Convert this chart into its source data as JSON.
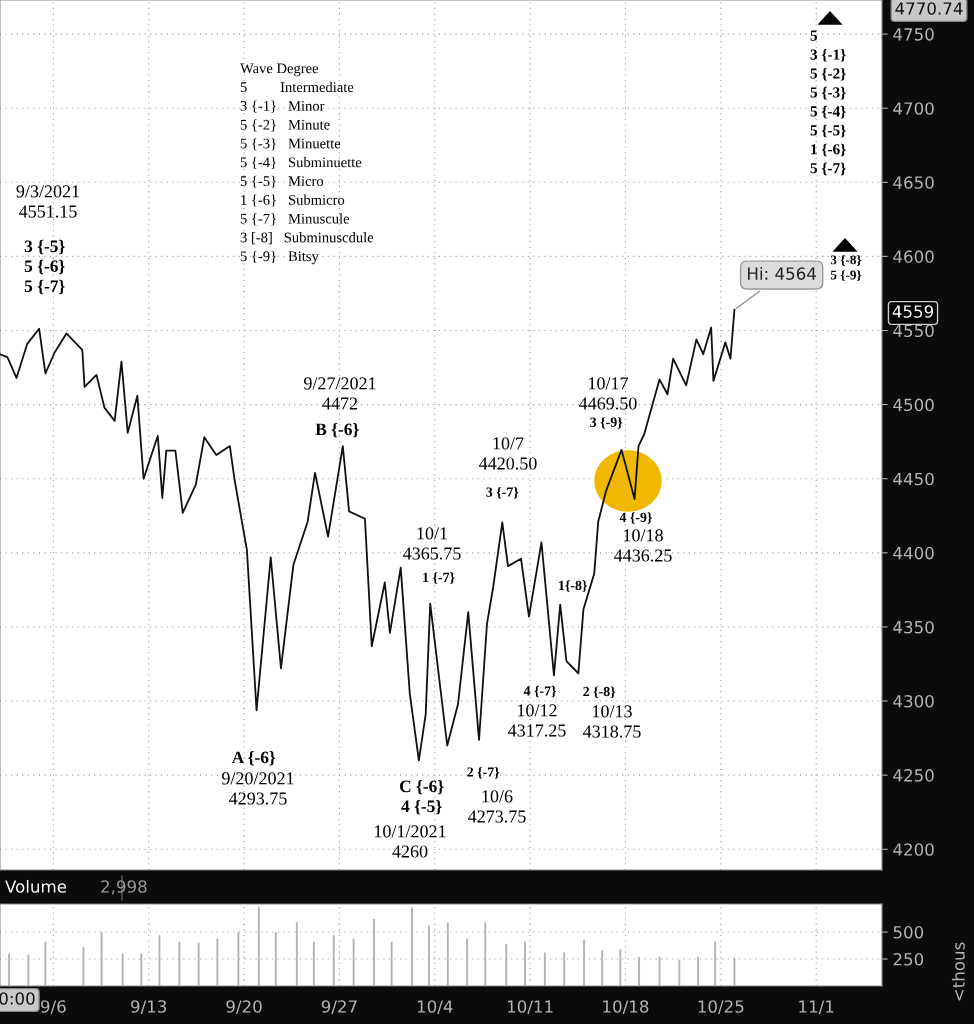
{
  "chart_data": [
    {
      "type": "line",
      "x": [
        "2021-09-02T02:00",
        "2021-09-02T15:00",
        "2021-09-03T07:00",
        "2021-09-04T02:00",
        "2021-09-04T23:00",
        "2021-09-05T10:00",
        "2021-09-06T02:00",
        "2021-09-06T23:00",
        "2021-09-08T03:00",
        "2021-09-08T07:00",
        "2021-09-09T04:00",
        "2021-09-09T18:00",
        "2021-09-10T12:00",
        "2021-09-11T00:00",
        "2021-09-11T11:00",
        "2021-09-12T04:00",
        "2021-09-12T15:00",
        "2021-09-13T16:00",
        "2021-09-14T00:00",
        "2021-09-14T07:00",
        "2021-09-14T23:00",
        "2021-09-15T12:00",
        "2021-09-16T11:00",
        "2021-09-17T02:00",
        "2021-09-17T23:00",
        "2021-09-18T23:00",
        "2021-09-19T07:00",
        "2021-09-20T05:00",
        "2021-09-20T22:00",
        "2021-09-21T23:00",
        "2021-09-22T17:00",
        "2021-09-23T15:00",
        "2021-09-24T16:00",
        "2021-09-25T05:00",
        "2021-09-26T04:00",
        "2021-09-27T06:00",
        "2021-09-27T17:00",
        "2021-09-28T21:00",
        "2021-09-29T09:00",
        "2021-09-30T08:00",
        "2021-09-30T17:00",
        "2021-10-01T12:00",
        "2021-10-02T04:00",
        "2021-10-02T20:00",
        "2021-10-03T08:00",
        "2021-10-03T16:00",
        "2021-10-04T22:00",
        "2021-10-05T17:00",
        "2021-10-06T11:00",
        "2021-10-07T06:00",
        "2021-10-07T20:00",
        "2021-10-08T07:00",
        "2021-10-08T23:00",
        "2021-10-09T09:00",
        "2021-10-10T08:00",
        "2021-10-10T22:00",
        "2021-10-11T20:00",
        "2021-10-12T18:00",
        "2021-10-13T05:00",
        "2021-10-13T16:00",
        "2021-10-14T13:00",
        "2021-10-14T22:00",
        "2021-10-15T17:00",
        "2021-10-16T00:00",
        "2021-10-16T14:00",
        "2021-10-17T17:00",
        "2021-10-18T16:00",
        "2021-10-18T23:00",
        "2021-10-19T09:00",
        "2021-10-20T12:00",
        "2021-10-21T02:00",
        "2021-10-21T12:00",
        "2021-10-22T11:00",
        "2021-10-23T05:00",
        "2021-10-23T17:00",
        "2021-10-24T07:00",
        "2021-10-24T11:00",
        "2021-10-25T08:00",
        "2021-10-25T17:00",
        "2021-10-26T00:00"
      ],
      "series": [
        {
          "color": "#111111",
          "values": [
            4534,
            4532,
            4518,
            4541,
            4551.15,
            4521,
            4535,
            4548,
            4537,
            4512,
            4520,
            4498,
            4489,
            4529,
            4481,
            4506,
            4450,
            4479,
            4437,
            4469,
            4469,
            4427,
            4446,
            4478,
            4466,
            4472,
            4450,
            4402,
            4293.75,
            4397,
            4322,
            4392,
            4421,
            4454,
            4411,
            4472,
            4428,
            4423,
            4337,
            4380,
            4346,
            4390,
            4305,
            4260,
            4291,
            4365.75,
            4270,
            4298,
            4360,
            4273.75,
            4352,
            4377,
            4420.5,
            4391,
            4396,
            4357,
            4407,
            4317.25,
            4365,
            4327,
            4318.75,
            4362,
            4386,
            4421,
            4442,
            4469.5,
            4436.25,
            4472,
            4480,
            4517,
            4507,
            4531,
            4513,
            4544,
            4534,
            4552,
            4516,
            4542,
            4531,
            4564
          ]
        }
      ],
      "xlim": [
        "2021-09-02T02:00",
        "2021-11-05T20:00"
      ],
      "xticks": [
        {
          "value": "2021-09-06",
          "label": null
        },
        {
          "value": "2021-09-13",
          "label": null
        },
        {
          "value": "2021-09-20",
          "label": null
        },
        {
          "value": "2021-09-27",
          "label": null
        },
        {
          "value": "2021-10-04",
          "label": null
        },
        {
          "value": "2021-10-11",
          "label": null
        },
        {
          "value": "2021-10-18",
          "label": null
        },
        {
          "value": "2021-10-25",
          "label": null
        },
        {
          "value": "2021-11-01",
          "label": null
        }
      ],
      "ylim": [
        4186,
        4773
      ],
      "yticks": [
        4200,
        4250,
        4300,
        4350,
        4400,
        4450,
        4500,
        4550,
        4600,
        4650,
        4700,
        4750
      ],
      "tick_labels": "y",
      "grid": true,
      "marker": "none",
      "line_style": "solid",
      "annotations": [
        "9/3/2021\n4551.15",
        {
          "text": "3 {-5}\n5 {-6}\n5 {-7}",
          "x": "2021-09-04T23:00",
          "y": 4551.15
        },
        {
          "text": "A {-6}",
          "x": "2021-09-20T22:00",
          "y": 4293.75
        },
        "9/20/2021\n4293.75",
        "9/27/2021\n4472",
        {
          "text": "B {-6}",
          "x": "2021-09-27T06:00",
          "y": 4472
        },
        {
          "text": "C {-6}\n4 {-5}",
          "x": "2021-10-02T20:00",
          "y": 4260
        },
        "10/1/2021\n4260",
        "10/1\n4365.75",
        {
          "text": "1 {-7}",
          "x": "2021-10-03T16:00",
          "y": 4365.75
        },
        {
          "text": "2 {-7}",
          "x": "2021-10-07T06:00",
          "y": 4273.75
        },
        "10/6\n4273.75",
        "10/7\n4420.50",
        {
          "text": "3 {-7}",
          "x": "2021-10-08T23:00",
          "y": 4420.5
        },
        {
          "text": "1{-8}",
          "x": "2021-10-13T05:00",
          "y": 4365
        },
        {
          "text": "4 {-7}",
          "x": "2021-10-12T18:00",
          "y": 4317.25
        },
        "10/12\n4317.25",
        {
          "text": "2 {-8}",
          "x": "2021-10-14T13:00",
          "y": 4318.75
        },
        "10/13\n4318.75",
        "10/17\n4469.50",
        {
          "text": "3 {-9}",
          "x": "2021-10-17T17:00",
          "y": 4469.5
        },
        {
          "text": "4 {-9}",
          "x": "2021-10-18T16:00",
          "y": 4436.25
        },
        "10/18\n4436.25",
        {
          "text": "Hi: 4564",
          "x": "2021-10-26T00:00",
          "y": 4564
        },
        "Wave Degree\n5         Intermediate\n3 {-1}   Minor\n5 {-2}   Minute\n5 {-3}   Minuette\n5 {-4}   Subminuette\n5 {-5}   Micro\n1 {-6}   Submicro\n5 {-7}   Minuscule\n3 [-8]   Subminuscdule\n5 {-9}   Bitsy",
        "5\n3 {-1}\n5 {-2}\n5 {-3}\n5 {-4}\n5 {-5}\n1 {-6}\n5 {-7}",
        "3 {-8}\n5 {-9}",
        "4770.74",
        "4559"
      ]
    },
    {
      "type": "bar",
      "title": "Volume",
      "subtitle": "2,998",
      "ylabel": "<thous",
      "x": [
        "2021-09-02T18:00",
        "2021-09-04T04:00",
        "2021-09-05T10:00",
        "2021-09-08T05:00",
        "2021-09-09T13:00",
        "2021-09-11T02:00",
        "2021-09-12T11:00",
        "2021-09-13T19:00",
        "2021-09-15T06:00",
        "2021-09-16T16:00",
        "2021-09-18T01:00",
        "2021-09-19T14:00",
        "2021-09-21T02:00",
        "2021-09-22T08:00",
        "2021-09-23T21:00",
        "2021-09-25T03:00",
        "2021-09-26T14:00",
        "2021-09-28T01:00",
        "2021-09-29T13:00",
        "2021-09-30T20:00",
        "2021-10-02T08:00",
        "2021-10-03T14:00",
        "2021-10-04T23:00",
        "2021-10-06T09:00",
        "2021-10-07T17:00",
        "2021-10-09T06:00",
        "2021-10-10T15:00",
        "2021-10-12T02:00",
        "2021-10-13T12:00",
        "2021-10-14T23:00",
        "2021-10-16T07:00",
        "2021-10-17T15:00",
        "2021-10-19T00:00",
        "2021-10-20T12:00",
        "2021-10-21T23:00",
        "2021-10-23T08:00",
        "2021-10-24T14:00",
        "2021-10-26T00:00"
      ],
      "series": [
        {
          "color": "#b3b3b3",
          "values": [
            300,
            290,
            410,
            360,
            500,
            300,
            300,
            470,
            410,
            400,
            440,
            500,
            730,
            500,
            590,
            410,
            470,
            440,
            620,
            410,
            730,
            560,
            590,
            440,
            590,
            390,
            410,
            310,
            310,
            430,
            330,
            340,
            270,
            270,
            240,
            270,
            410,
            260
          ]
        }
      ],
      "xlim": [
        "2021-09-02T02:00",
        "2021-11-05T20:00"
      ],
      "xticks": [
        {
          "value": "2021-09-06",
          "label": "9/6"
        },
        {
          "value": "2021-09-13",
          "label": "9/13"
        },
        {
          "value": "2021-09-20",
          "label": "9/20"
        },
        {
          "value": "2021-09-27",
          "label": "9/27"
        },
        {
          "value": "2021-10-04",
          "label": "10/4"
        },
        {
          "value": "2021-10-11",
          "label": "10/11"
        },
        {
          "value": "2021-10-18",
          "label": "10/18"
        },
        {
          "value": "2021-10-25",
          "label": "10/25"
        },
        {
          "value": "2021-11-01",
          "label": "11/1"
        }
      ],
      "ylim": [
        0,
        760
      ],
      "yticks": [
        250,
        500
      ],
      "grid": true,
      "annotations": [
        "0:00"
      ]
    }
  ]
}
